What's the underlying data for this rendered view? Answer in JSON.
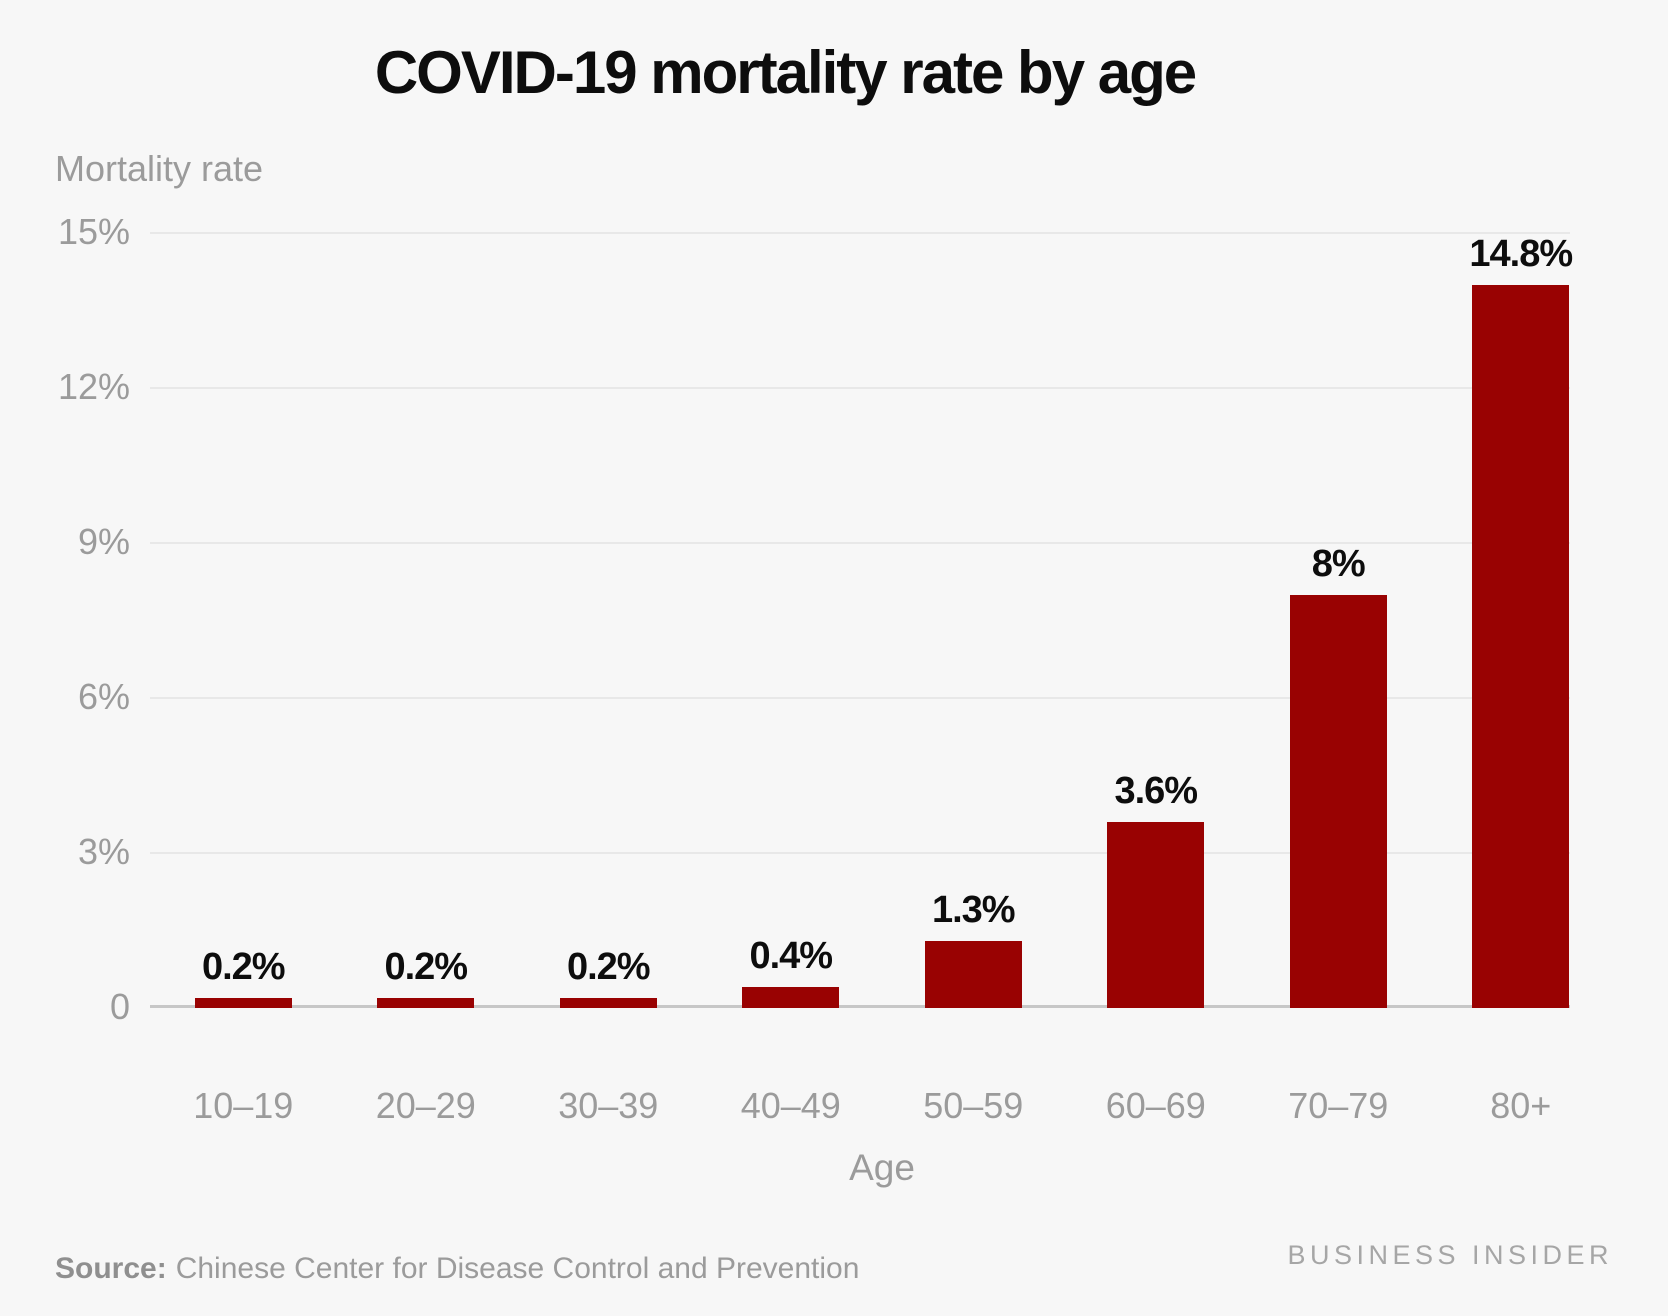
{
  "chart_data": {
    "type": "bar",
    "title": "COVID-19 mortality rate by age",
    "xlabel": "Age",
    "ylabel": "Mortality rate",
    "categories": [
      "10–19",
      "20–29",
      "30–39",
      "40–49",
      "50–59",
      "60–69",
      "70–79",
      "80+"
    ],
    "values": [
      0.2,
      0.2,
      0.2,
      0.4,
      1.3,
      3.6,
      8,
      14.8
    ],
    "value_labels": [
      "0.2%",
      "0.2%",
      "0.2%",
      "0.4%",
      "1.3%",
      "3.6%",
      "8%",
      "14.8%"
    ],
    "y_ticks": [
      {
        "label": "15%",
        "value": 15
      },
      {
        "label": "12%",
        "value": 12
      },
      {
        "label": "9%",
        "value": 9
      },
      {
        "label": "6%",
        "value": 6
      },
      {
        "label": "3%",
        "value": 3
      },
      {
        "label": "0",
        "value": 0
      }
    ],
    "ylim": [
      0,
      15
    ],
    "grid": true,
    "legend_position": "none",
    "bar_color": "#990202"
  },
  "footer": {
    "source_label": "Source:",
    "source_text": "Chinese Center for Disease Control and Prevention",
    "brand": "BUSINESS INSIDER"
  },
  "colors": {
    "background": "#f7f7f7",
    "bar": "#990202",
    "gridline": "#e8e8e8",
    "axis_line": "#c7c7c7",
    "label_gray": "#9b9b9b",
    "text_black": "#0d0d0d"
  }
}
